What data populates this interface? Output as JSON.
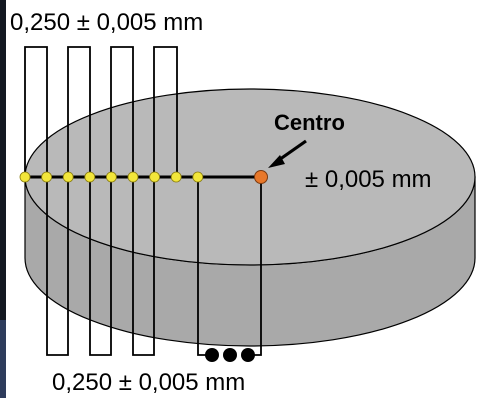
{
  "labels": {
    "top_tolerance": "0,250 ± 0,005 mm",
    "bottom_tolerance": "0,250 ± 0,005 mm",
    "center_label": "Centro",
    "center_tolerance": "± 0,005 mm",
    "ellipsis": "•••"
  },
  "measurement_points": {
    "count": 9,
    "point_color": "#f2e63a",
    "center_color": "#e8782a"
  },
  "colors": {
    "disc_fill": "#b9b9b9",
    "disc_side": "#a9a9a9",
    "line": "#000000",
    "left_edge_dark": "#2e3c5c"
  }
}
